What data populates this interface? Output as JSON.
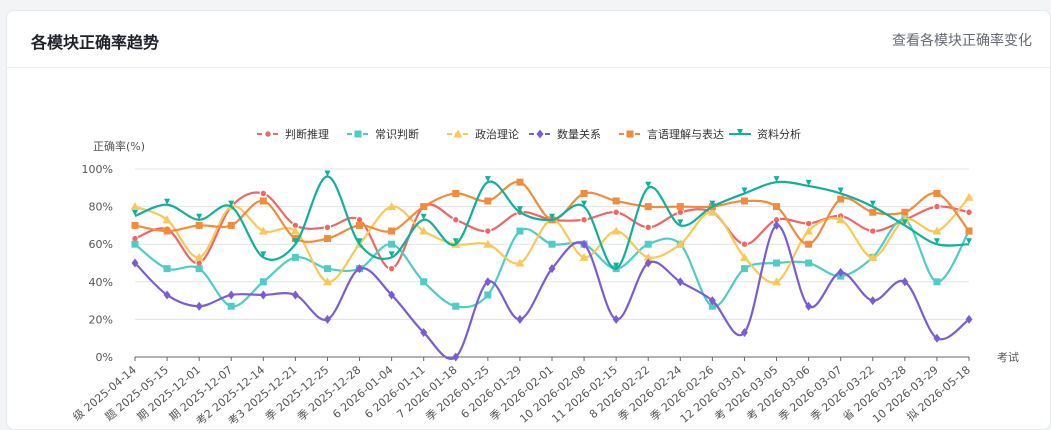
{
  "header": {
    "title": "各模块正确率趋势",
    "link_label": "查看各模块正确率变化"
  },
  "chart_data": {
    "type": "line",
    "title": "",
    "ylabel": "正确率(%)",
    "xlabel": "考试",
    "ylim": [
      0,
      100
    ],
    "yticks": [
      "0%",
      "20%",
      "40%",
      "60%",
      "80%",
      "100%"
    ],
    "grid": true,
    "legend_position": "top-center",
    "categories": [
      "级 2025-04-14",
      "题 2025-05-15",
      "期 2025-12-01",
      "期 2025-12-07",
      "考2 2025-12-14",
      "考3 2025-12-21",
      "季 2025-12-25",
      "季 2025-12-28",
      "6 2026-01-04",
      "6 2026-01-11",
      "7 2026-01-18",
      "季 2026-01-25",
      "6 2026-01-29",
      "季 2026-02-01",
      "10 2026-02-08",
      "11 2026-02-15",
      "8 2026-02-22",
      "季 2026-02-24",
      "季 2026-02-26",
      "12 2026-03-01",
      "考 2026-03-05",
      "考 2026-03-06",
      "季 2026-03-07",
      "季 2026-03-22",
      "省 2026-03-28",
      "10 2026-03-29",
      "拟 2026-05-18"
    ],
    "series": [
      {
        "name": "判断推理",
        "color": "#ee6666",
        "marker": "circle",
        "values": [
          63,
          68,
          50,
          80,
          87,
          70,
          69,
          73,
          47,
          80,
          73,
          67,
          77,
          73,
          73,
          77,
          69,
          77,
          77,
          60,
          73,
          71,
          75,
          67,
          73,
          80,
          77
        ]
      },
      {
        "name": "常识判断",
        "color": "#4ecdc4",
        "marker": "rect",
        "values": [
          60,
          47,
          47,
          27,
          40,
          53,
          47,
          47,
          60,
          40,
          27,
          33,
          67,
          60,
          60,
          47,
          60,
          60,
          27,
          47,
          50,
          50,
          43,
          53,
          73,
          40,
          67
        ]
      },
      {
        "name": "政治理论",
        "color": "#fac858",
        "marker": "triangle",
        "values": [
          80,
          73,
          53,
          80,
          67,
          67,
          40,
          60,
          80,
          67,
          60,
          60,
          50,
          73,
          53,
          67,
          53,
          60,
          77,
          53,
          40,
          67,
          73,
          53,
          73,
          67,
          85
        ]
      },
      {
        "name": "数量关系",
        "color": "#7b5cd6",
        "marker": "diamond",
        "values": [
          50,
          33,
          27,
          33,
          33,
          33,
          20,
          47,
          33,
          13,
          0,
          40,
          20,
          47,
          60,
          20,
          50,
          40,
          30,
          13,
          70,
          27,
          45,
          30,
          40,
          10,
          20
        ]
      },
      {
        "name": "言语理解与表达",
        "color": "#f28c3c",
        "marker": "rect",
        "values": [
          70,
          67,
          70,
          70,
          83,
          63,
          63,
          70,
          67,
          80,
          87,
          83,
          93,
          73,
          87,
          83,
          80,
          80,
          80,
          83,
          80,
          60,
          84,
          77,
          77,
          87,
          67
        ]
      },
      {
        "name": "资料分析",
        "color": "#10b09a",
        "marker": "pin",
        "values": [
          75,
          81,
          73,
          80,
          53,
          60,
          96,
          60,
          53,
          73,
          60,
          93,
          77,
          73,
          80,
          47,
          90,
          70,
          80,
          87,
          93,
          91,
          87,
          80,
          70,
          60,
          60
        ]
      }
    ]
  }
}
